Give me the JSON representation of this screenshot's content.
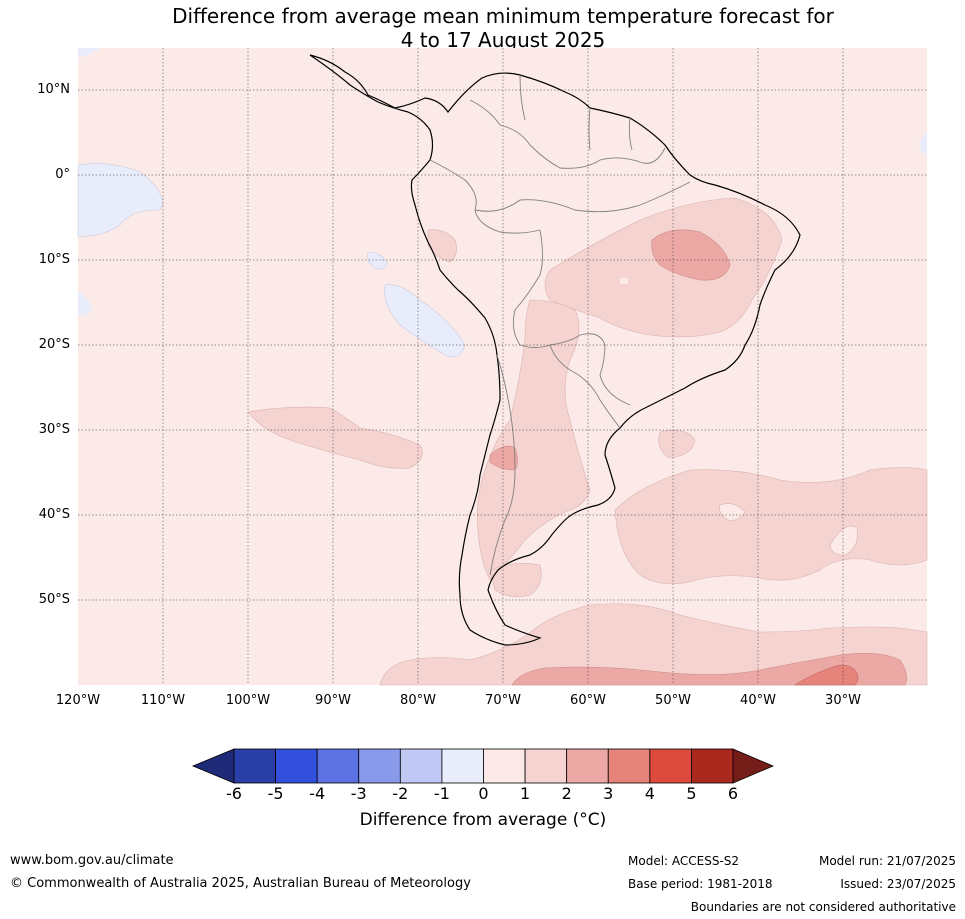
{
  "title": {
    "line1": "Difference from average mean minimum temperature forecast for",
    "line2": "4 to 17 August 2025"
  },
  "map": {
    "region": "South America",
    "lat_labels": [
      "10°N",
      "0°",
      "10°S",
      "20°S",
      "30°S",
      "40°S",
      "50°S"
    ],
    "lon_labels": [
      "120°W",
      "110°W",
      "100°W",
      "90°W",
      "80°W",
      "70°W",
      "60°W",
      "50°W",
      "40°W",
      "30°W"
    ],
    "colors": {
      "ocean_background": "#fbeae8",
      "band_0_to_1": "#fbeae8",
      "band_1_to_2": "#f5d3d0",
      "band_2_to_3": "#eca8a4",
      "band_3_to_4": "#e6837b",
      "band_minus1_to_0": "#e8ecfb",
      "coastline": "#000000",
      "borders": "#808080"
    }
  },
  "colorbar": {
    "title": "Difference from average (°C)",
    "ticks": [
      "-6",
      "-5",
      "-4",
      "-3",
      "-2",
      "-1",
      "0",
      "1",
      "2",
      "3",
      "4",
      "5",
      "6"
    ],
    "colors": [
      "#2a3ea8",
      "#3350dd",
      "#5c72e3",
      "#8a9aeb",
      "#c0c8f4",
      "#e8ecfb",
      "#fbeae8",
      "#f5d3d0",
      "#eca8a4",
      "#e6837b",
      "#dc4a3e",
      "#a9291f"
    ],
    "under_color": "#1f2a78",
    "over_color": "#741d18"
  },
  "footer": {
    "website": "www.bom.gov.au/climate",
    "copyright": "© Commonwealth of Australia 2025, Australian Bureau of Meteorology",
    "model": "Model: ACCESS-S2",
    "base_period": "Base period: 1981-2018",
    "model_run": "Model run: 21/07/2025",
    "issued": "Issued: 23/07/2025",
    "disclaimer": "Boundaries are not considered authoritative"
  }
}
